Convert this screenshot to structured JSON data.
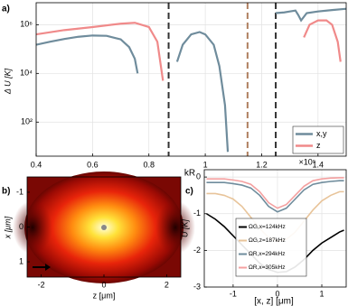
{
  "chart_data": [
    {
      "type": "line",
      "panel_label": "a)",
      "xlabel": "kR",
      "ylabel": "Δ U [K]",
      "log_y": true,
      "grid": true,
      "legend": "lower right",
      "xlim": [
        0.4,
        1.5
      ],
      "xticks": [
        0.4,
        0.6,
        0.8,
        1,
        1.2,
        1.4
      ],
      "ylim": [
        4,
        8000000
      ],
      "yticks": [
        {
          "value": 100,
          "label": "10²"
        },
        {
          "value": 10000,
          "label": "10⁴"
        },
        {
          "value": 1000000,
          "label": "10⁶"
        }
      ],
      "vlines": [
        {
          "x": 0.87,
          "color": "#333333"
        },
        {
          "x": 1.15,
          "color": "#b08060"
        },
        {
          "x": 1.25,
          "color": "#333333"
        }
      ],
      "series": [
        {
          "name": "x,y",
          "color": "#6f8c9c",
          "x": [
            0.4,
            0.45,
            0.5,
            0.55,
            0.6,
            0.65,
            0.7,
            0.73,
            0.75,
            0.76,
            null,
            0.9,
            0.92,
            0.95,
            0.98,
            1.0,
            1.03,
            1.05,
            1.07,
            1.08,
            null,
            1.25,
            1.28,
            1.3,
            1.32,
            1.33,
            1.34,
            1.36,
            1.4,
            1.45,
            1.5
          ],
          "values": [
            150000,
            200000,
            260000,
            320000,
            360000,
            350000,
            250000,
            120000,
            40000,
            10000,
            null,
            30000,
            150000,
            400000,
            500000,
            400000,
            150000,
            20000,
            500,
            6,
            null,
            3000000,
            3200000,
            3500000,
            3800000,
            2500000,
            1500000,
            3000000,
            3500000,
            4000000,
            4500000
          ]
        },
        {
          "name": "z",
          "color": "#f08a8a",
          "x": [
            0.4,
            0.5,
            0.6,
            0.7,
            0.75,
            0.8,
            0.83,
            0.85,
            null,
            1.35,
            1.37,
            1.4,
            1.43,
            1.45,
            1.47,
            1.48
          ],
          "values": [
            400000,
            600000,
            800000,
            1100000,
            1200000,
            800000,
            200000,
            5000,
            null,
            300000,
            1000000,
            1500000,
            1500000,
            1000000,
            200000,
            30000
          ]
        }
      ]
    },
    {
      "type": "heatmap",
      "panel_label": "b)",
      "xlabel": "z [μm]",
      "ylabel": "x [μm]",
      "xlim": [
        -2.45,
        2.45
      ],
      "xticks": [
        -2,
        0,
        2
      ],
      "ylim": [
        1.44,
        -1.44
      ],
      "yticks": [
        -1,
        0,
        1
      ]
    },
    {
      "type": "line",
      "panel_label": "c)",
      "xlabel": "[x, z] [μm]",
      "ylabel": "U [K]",
      "y_multiplier": "×10⁵",
      "grid": true,
      "legend": "lower right",
      "xlim": [
        -1.65,
        1.55
      ],
      "xticks": [
        -1,
        0,
        1
      ],
      "ylim": [
        -3,
        0.2
      ],
      "yticks": [
        -3,
        -2,
        -1,
        0
      ],
      "series": [
        {
          "name": "ΩG,x=124kHz",
          "color": "#000000",
          "x": [
            -1.6,
            -1.4,
            -1.2,
            -1.0,
            -0.8,
            -0.6,
            -0.4,
            -0.2,
            0,
            0.2,
            0.4,
            0.6,
            0.8,
            1.0,
            1.2,
            1.4,
            1.5
          ],
          "values": [
            -1.0,
            -1.15,
            -1.35,
            -1.6,
            -1.85,
            -2.1,
            -2.35,
            -2.52,
            -2.6,
            -2.58,
            -2.45,
            -2.25,
            -2.0,
            -1.8,
            -1.65,
            -1.5,
            -1.45
          ]
        },
        {
          "name": "ΩG,z=187kHz",
          "color": "#e8c49a",
          "x": [
            -1.6,
            -1.4,
            -1.2,
            -1.0,
            -0.8,
            -0.6,
            -0.4,
            -0.2,
            0,
            0.2,
            0.4,
            0.6,
            0.8,
            1.0,
            1.2,
            1.4,
            1.5
          ],
          "values": [
            -0.45,
            -0.45,
            -0.5,
            -0.6,
            -0.8,
            -1.1,
            -1.4,
            -1.65,
            -1.75,
            -1.7,
            -1.5,
            -1.2,
            -0.9,
            -0.65,
            -0.5,
            -0.4,
            -0.4
          ]
        },
        {
          "name": "ΩR,x=294kHz",
          "color": "#6f8c9c",
          "x": [
            -1.6,
            -1.4,
            -1.2,
            -1.0,
            -0.8,
            -0.6,
            -0.4,
            -0.2,
            0,
            0.2,
            0.4,
            0.6,
            0.8,
            1.0,
            1.2,
            1.4,
            1.5
          ],
          "values": [
            -0.15,
            -0.15,
            -0.15,
            -0.18,
            -0.22,
            -0.3,
            -0.5,
            -0.8,
            -0.95,
            -0.85,
            -0.6,
            -0.35,
            -0.2,
            -0.15,
            -0.12,
            -0.1,
            -0.1
          ]
        },
        {
          "name": "ΩR,x=305kHz",
          "color": "#f4a0a0",
          "x": [
            -1.6,
            -1.4,
            -1.2,
            -1.0,
            -0.8,
            -0.6,
            -0.4,
            -0.2,
            0,
            0.2,
            0.4,
            0.6,
            0.8,
            1.0,
            1.2,
            1.4,
            1.5
          ],
          "values": [
            -0.05,
            -0.05,
            -0.05,
            -0.08,
            -0.12,
            -0.2,
            -0.4,
            -0.7,
            -0.85,
            -0.75,
            -0.5,
            -0.25,
            -0.1,
            -0.05,
            -0.03,
            -0.02,
            -0.02
          ]
        }
      ]
    }
  ]
}
